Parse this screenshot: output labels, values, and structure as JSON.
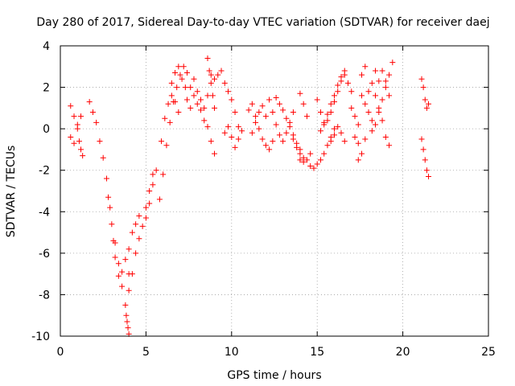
{
  "chart_data": {
    "type": "scatter",
    "title": "Day 280 of 2017, Sidereal Day-to-day VTEC variation (SDTVAR) for receiver daej",
    "xlabel": "GPS time / hours",
    "ylabel": "SDTVAR / TECUs",
    "xlim": [
      0,
      25
    ],
    "ylim": [
      -10,
      4
    ],
    "xticks": [
      0,
      5,
      10,
      15,
      20,
      25
    ],
    "yticks": [
      -10,
      -8,
      -6,
      -4,
      -2,
      0,
      2,
      4
    ],
    "grid": true,
    "marker": "+",
    "color": "#ff0000",
    "series": [
      {
        "name": "SDTVAR",
        "tracks": [
          {
            "x": [
              0.6,
              0.8,
              1.0,
              1.1,
              1.2,
              1.3
            ],
            "y": [
              1.1,
              0.6,
              0.0,
              -0.6,
              -1.0,
              -1.3
            ]
          },
          {
            "x": [
              0.6,
              0.8,
              1.0,
              1.2
            ],
            "y": [
              -0.4,
              -0.7,
              0.2,
              0.6
            ]
          },
          {
            "x": [
              1.7,
              1.9,
              2.1,
              2.3,
              2.5,
              2.7
            ],
            "y": [
              1.3,
              0.8,
              0.3,
              -0.6,
              -1.4,
              -2.4
            ]
          },
          {
            "x": [
              2.8,
              2.9,
              3.0,
              3.1,
              3.2,
              3.4,
              3.6
            ],
            "y": [
              -3.3,
              -3.8,
              -4.6,
              -5.4,
              -6.2,
              -7.1,
              -7.6
            ]
          },
          {
            "x": [
              3.2,
              3.4,
              3.6,
              3.8,
              4.0
            ],
            "y": [
              -5.5,
              -6.5,
              -6.9,
              -6.3,
              -7.0
            ]
          },
          {
            "x": [
              3.8,
              3.85,
              3.9,
              3.95,
              4.0
            ],
            "y": [
              -8.5,
              -9.0,
              -9.3,
              -9.6,
              -9.9
            ]
          },
          {
            "x": [
              4.0,
              4.2,
              4.4,
              4.6,
              4.8,
              5.0,
              5.2,
              5.4
            ],
            "y": [
              -7.8,
              -7.0,
              -6.0,
              -5.3,
              -4.7,
              -3.8,
              -3.0,
              -2.2
            ]
          },
          {
            "x": [
              4.0,
              4.2,
              4.4,
              4.6
            ],
            "y": [
              -5.8,
              -5.0,
              -4.6,
              -4.2
            ]
          },
          {
            "x": [
              5.0,
              5.2,
              5.4,
              5.6
            ],
            "y": [
              -4.3,
              -3.6,
              -2.7,
              -2.0
            ]
          },
          {
            "x": [
              5.8,
              6.0,
              6.2,
              6.4,
              6.6,
              6.8,
              7.0,
              7.2,
              7.4
            ],
            "y": [
              -3.4,
              -2.2,
              -0.8,
              0.3,
              1.3,
              2.0,
              2.6,
              3.0,
              2.7
            ]
          },
          {
            "x": [
              5.9,
              6.1,
              6.3,
              6.5,
              6.7,
              6.9
            ],
            "y": [
              -0.6,
              0.5,
              1.2,
              1.6,
              1.3,
              0.8
            ]
          },
          {
            "x": [
              6.5,
              6.7,
              6.9,
              7.1,
              7.3
            ],
            "y": [
              2.2,
              2.7,
              3.0,
              2.4,
              2.0
            ]
          },
          {
            "x": [
              7.4,
              7.6,
              7.8,
              8.0,
              8.2,
              8.4,
              8.6,
              8.8,
              9.0
            ],
            "y": [
              1.4,
              1.0,
              1.6,
              1.2,
              0.9,
              0.4,
              0.1,
              -0.6,
              -1.2
            ]
          },
          {
            "x": [
              7.6,
              7.8,
              8.0,
              8.2,
              8.4,
              8.6,
              8.8
            ],
            "y": [
              2.0,
              2.4,
              1.8,
              1.4,
              1.0,
              1.6,
              2.6
            ]
          },
          {
            "x": [
              8.6,
              8.7,
              8.8,
              8.9,
              9.0
            ],
            "y": [
              3.4,
              2.8,
              2.2,
              1.6,
              1.0
            ]
          },
          {
            "x": [
              9.0,
              9.2
            ],
            "y": [
              2.4,
              2.6
            ]
          },
          {
            "x": [
              9.4,
              9.6,
              9.8,
              10.0,
              10.2,
              10.4
            ],
            "y": [
              2.8,
              2.2,
              1.8,
              1.4,
              0.8,
              0.1
            ]
          },
          {
            "x": [
              9.6,
              9.8,
              10.0,
              10.2,
              10.4,
              10.6
            ],
            "y": [
              -0.2,
              0.1,
              -0.4,
              -0.9,
              -0.5,
              -0.1
            ]
          },
          {
            "x": [
              11.0,
              11.2,
              11.4,
              11.6,
              11.8,
              12.0,
              12.2,
              12.4
            ],
            "y": [
              0.9,
              1.2,
              0.6,
              0.0,
              -0.5,
              -0.8,
              -1.0,
              -0.6
            ]
          },
          {
            "x": [
              11.2,
              11.4,
              11.6,
              11.8,
              12.0
            ],
            "y": [
              -0.2,
              0.3,
              0.8,
              1.1,
              0.6
            ]
          },
          {
            "x": [
              12.2,
              12.4,
              12.6,
              12.8,
              13.0,
              13.2,
              13.4,
              13.6
            ],
            "y": [
              1.4,
              0.8,
              0.2,
              -0.3,
              -0.6,
              -0.2,
              0.3,
              0.8
            ]
          },
          {
            "x": [
              12.6,
              12.8,
              13.0,
              13.2,
              13.4,
              13.6,
              13.8,
              14.0
            ],
            "y": [
              1.5,
              1.2,
              0.9,
              0.5,
              0.1,
              -0.3,
              -0.7,
              -1.0
            ]
          },
          {
            "x": [
              13.6,
              13.8,
              14.0,
              14.2
            ],
            "y": [
              -0.5,
              -0.9,
              -1.2,
              -1.4
            ]
          },
          {
            "x": [
              14.0,
              14.2,
              14.4,
              14.6
            ],
            "y": [
              -1.5,
              -1.6,
              -1.5,
              -1.2
            ]
          },
          {
            "x": [
              14.0,
              14.2,
              14.4
            ],
            "y": [
              1.7,
              1.2,
              0.6
            ]
          },
          {
            "x": [
              14.6,
              14.8,
              15.0,
              15.2,
              15.4,
              15.6,
              15.8,
              16.0
            ],
            "y": [
              -1.8,
              -1.9,
              -1.7,
              -1.5,
              -1.2,
              -0.8,
              -0.4,
              0.0
            ]
          },
          {
            "x": [
              15.0,
              15.2,
              15.4,
              15.6,
              15.8,
              16.0,
              16.2,
              16.4
            ],
            "y": [
              1.4,
              0.8,
              0.2,
              0.4,
              0.8,
              1.3,
              1.8,
              2.3
            ]
          },
          {
            "x": [
              15.2,
              15.4,
              15.6,
              15.8,
              16.0,
              16.2,
              16.4,
              16.6
            ],
            "y": [
              -0.1,
              0.3,
              0.7,
              1.2,
              1.6,
              2.1,
              2.5,
              2.8
            ]
          },
          {
            "x": [
              15.8,
              16.0,
              16.2,
              16.4,
              16.6
            ],
            "y": [
              -0.6,
              -0.3,
              0.1,
              -0.2,
              -0.6
            ]
          },
          {
            "x": [
              16.6,
              16.8,
              17.0
            ],
            "y": [
              2.6,
              2.2,
              1.8
            ]
          },
          {
            "x": [
              17.0,
              17.2,
              17.4
            ],
            "y": [
              1.0,
              0.6,
              0.2
            ]
          },
          {
            "x": [
              17.2,
              17.4
            ],
            "y": [
              -0.4,
              -0.7
            ]
          },
          {
            "x": [
              17.6,
              17.8,
              18.0,
              18.2
            ],
            "y": [
              1.6,
              1.2,
              0.8,
              0.4
            ]
          },
          {
            "x": [
              17.6,
              17.8
            ],
            "y": [
              2.6,
              3.0
            ]
          },
          {
            "x": [
              17.4,
              17.6,
              17.8
            ],
            "y": [
              -1.5,
              -1.2,
              -0.5
            ]
          },
          {
            "x": [
              18.0,
              18.2,
              18.4,
              18.6,
              18.8,
              19.0,
              19.2
            ],
            "y": [
              1.8,
              2.2,
              1.6,
              1.0,
              0.4,
              -0.4,
              -0.8
            ]
          },
          {
            "x": [
              18.2,
              18.4,
              18.6,
              18.8,
              19.0,
              19.2,
              19.4
            ],
            "y": [
              -0.1,
              0.2,
              0.8,
              1.4,
              2.0,
              2.6,
              3.2
            ]
          },
          {
            "x": [
              18.4,
              18.6,
              18.8,
              19.0,
              19.2
            ],
            "y": [
              2.8,
              2.3,
              2.8,
              2.3,
              1.6
            ]
          },
          {
            "x": [
              21.1,
              21.2,
              21.3,
              21.4,
              21.5
            ],
            "y": [
              2.4,
              2.0,
              1.4,
              1.0,
              1.2
            ]
          },
          {
            "x": [
              21.1,
              21.2,
              21.3,
              21.4,
              21.5
            ],
            "y": [
              -0.5,
              -1.0,
              -1.5,
              -2.0,
              -2.3
            ]
          }
        ]
      }
    ]
  }
}
